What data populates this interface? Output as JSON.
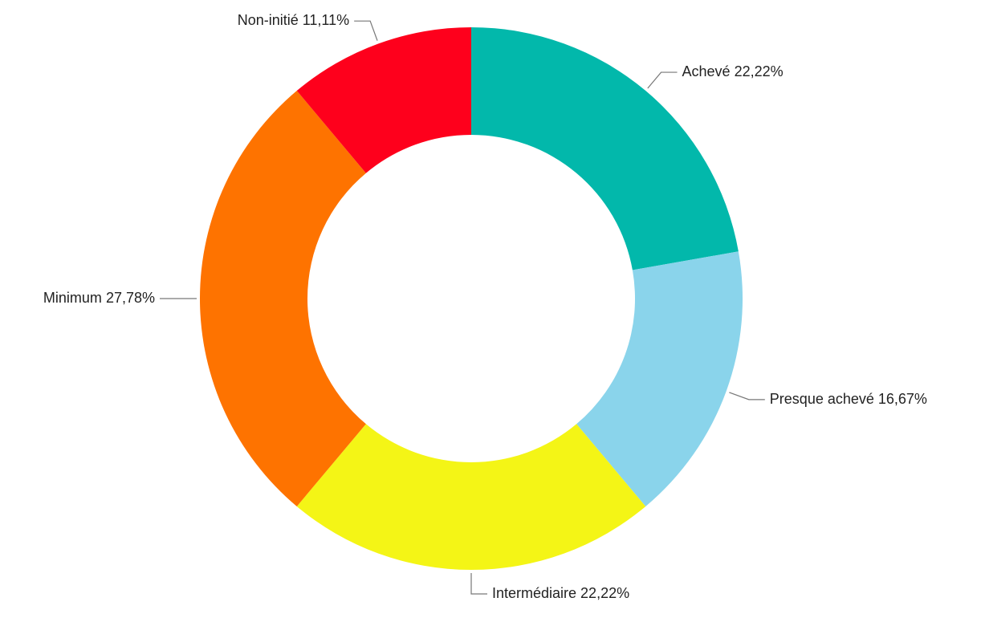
{
  "chart_data": {
    "type": "donut",
    "categories": [
      "Achevé",
      "Presque achevé",
      "Intermédiaire",
      "Minimum",
      "Non-initié"
    ],
    "values": [
      22.22,
      16.67,
      22.22,
      27.78,
      11.11
    ],
    "value_labels": [
      "22,22%",
      "16,67%",
      "22,22%",
      "27,78%",
      "11,11%"
    ],
    "colors": [
      "#02b8ab",
      "#8ad4eb",
      "#f4f516",
      "#fe7300",
      "#fe001c"
    ]
  }
}
